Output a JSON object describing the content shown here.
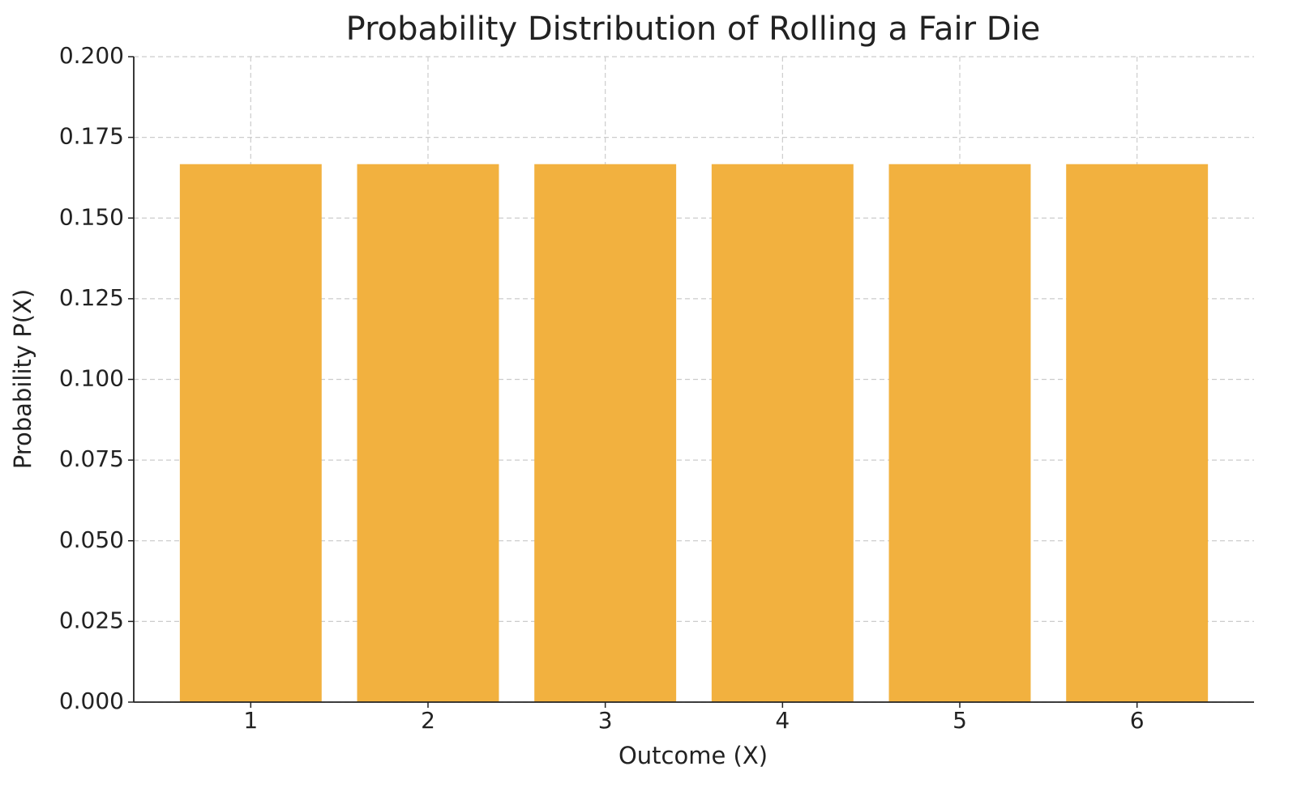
{
  "chart_data": {
    "type": "bar",
    "title": "Probability Distribution of Rolling a Fair Die",
    "x_label": "Outcome (X)",
    "y_label": "Probability P(X)",
    "categories": [
      "1",
      "2",
      "3",
      "4",
      "5",
      "6"
    ],
    "values": [
      0.1667,
      0.1667,
      0.1667,
      0.1667,
      0.1667,
      0.1667
    ],
    "color": "#f2b13f",
    "ylim": [
      0,
      0.2
    ],
    "yticks": [
      {
        "value": 0,
        "label": "0.000"
      },
      0.025,
      {
        "value": 0.05,
        "label": "0.050"
      },
      0.075,
      {
        "value": 0.1,
        "label": "0.100"
      },
      0.125,
      {
        "value": 0.15,
        "label": "0.150"
      },
      0.175,
      {
        "value": 0.2,
        "label": "0.200"
      }
    ],
    "grid": true
  }
}
